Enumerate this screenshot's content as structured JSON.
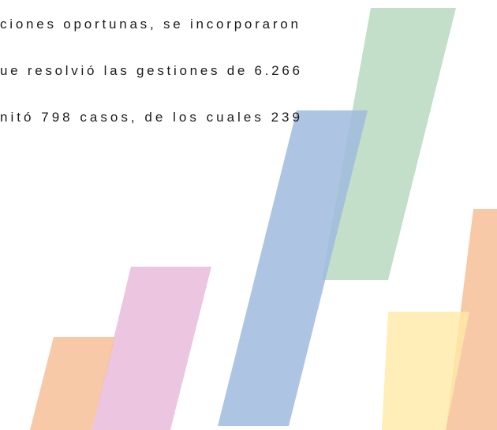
{
  "paragraph": {
    "lines": [
      "ciones oportunas, se incorporaron",
      "ue resolvió las gestiones de 6.266",
      "nitó 798 casos, de los cuales 239"
    ]
  }
}
